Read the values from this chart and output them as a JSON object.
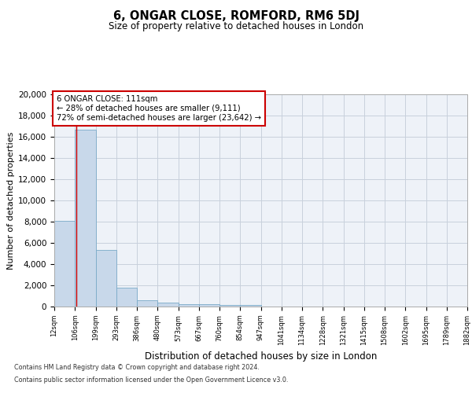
{
  "title": "6, ONGAR CLOSE, ROMFORD, RM6 5DJ",
  "subtitle": "Size of property relative to detached houses in London",
  "xlabel": "Distribution of detached houses by size in London",
  "ylabel": "Number of detached properties",
  "footer_line1": "Contains HM Land Registry data © Crown copyright and database right 2024.",
  "footer_line2": "Contains public sector information licensed under the Open Government Licence v3.0.",
  "annotation_title": "6 ONGAR CLOSE: 111sqm",
  "annotation_line1": "← 28% of detached houses are smaller (9,111)",
  "annotation_line2": "72% of semi-detached houses are larger (23,642) →",
  "bar_heights": [
    8100,
    16700,
    5300,
    1750,
    620,
    340,
    250,
    200,
    180,
    150,
    0,
    0,
    0,
    0,
    0,
    0,
    0,
    0,
    0,
    0
  ],
  "xlabels": [
    "12sqm",
    "106sqm",
    "199sqm",
    "293sqm",
    "386sqm",
    "480sqm",
    "573sqm",
    "667sqm",
    "760sqm",
    "854sqm",
    "947sqm",
    "1041sqm",
    "1134sqm",
    "1228sqm",
    "1321sqm",
    "1415sqm",
    "1508sqm",
    "1602sqm",
    "1695sqm",
    "1789sqm",
    "1882sqm"
  ],
  "ylim": [
    0,
    20000
  ],
  "yticks": [
    0,
    2000,
    4000,
    6000,
    8000,
    10000,
    12000,
    14000,
    16000,
    18000,
    20000
  ],
  "bar_color": "#c8d8ea",
  "bar_edge_color": "#7aaac8",
  "vline_color": "#cc0000",
  "vline_x": 1.05,
  "grid_color": "#c8d0dc",
  "background_color": "#eef2f8"
}
